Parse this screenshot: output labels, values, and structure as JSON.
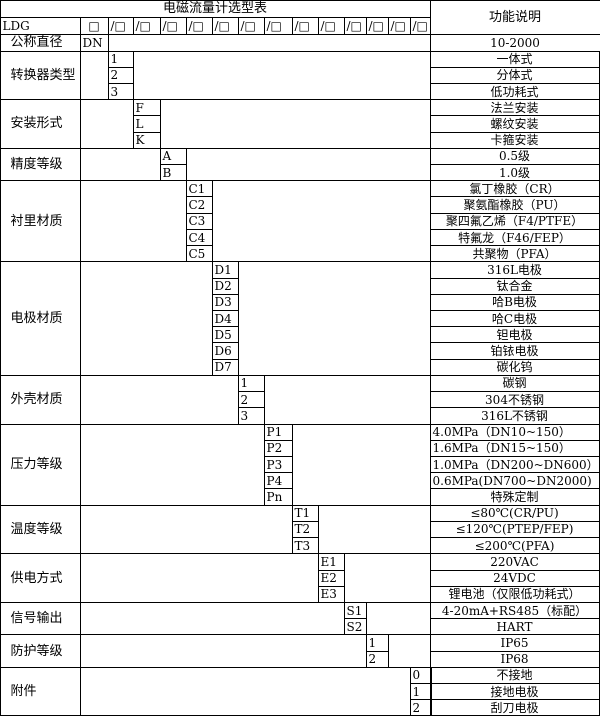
{
  "header": {
    "title": "电磁流量计选型表",
    "function_header": "功能说明",
    "model_prefix": "LDG",
    "first_box": "□",
    "boxes": [
      "/□",
      "/□",
      "/□",
      "/□",
      "/□",
      "/□",
      "/□",
      "/□",
      "/□",
      "/□",
      "/□",
      "/□",
      "/□"
    ]
  },
  "diameter": {
    "label": "公称直径",
    "code": "DN",
    "desc": "10-2000"
  },
  "groups": [
    {
      "label": "转换器类型",
      "col": 0,
      "codes": [
        "1",
        "2",
        "3"
      ],
      "descs": [
        "一体式",
        "分体式",
        "低功耗式"
      ]
    },
    {
      "label": "安装形式",
      "col": 1,
      "codes": [
        "F",
        "L",
        "K"
      ],
      "descs": [
        "法兰安装",
        "螺纹安装",
        "卡箍安装"
      ]
    },
    {
      "label": "精度等级",
      "col": 2,
      "codes": [
        "A",
        "B"
      ],
      "descs": [
        "0.5级",
        "1.0级"
      ]
    },
    {
      "label": "衬里材质",
      "col": 3,
      "codes": [
        "C1",
        "C2",
        "C3",
        "C4",
        "C5"
      ],
      "descs": [
        "氯丁橡胶（CR）",
        "聚氨酯橡胶（PU）",
        "聚四氟乙烯（F4/PTFE）",
        "特氟龙（F46/FEP）",
        "共聚物（PFA）"
      ]
    },
    {
      "label": "电极材质",
      "col": 4,
      "codes": [
        "D1",
        "D2",
        "D3",
        "D4",
        "D5",
        "D6",
        "D7"
      ],
      "descs": [
        "316L电极",
        "钛合金",
        "哈B电极",
        "哈C电极",
        "钽电极",
        "铂铱电极",
        "碳化钨"
      ]
    },
    {
      "label": "外壳材质",
      "col": 5,
      "codes": [
        "1",
        "2",
        "3"
      ],
      "descs": [
        "碳钢",
        "304不锈钢",
        "316L不锈钢"
      ]
    },
    {
      "label": "压力等级",
      "col": 6,
      "codes": [
        "P1",
        "P2",
        "P3",
        "P4",
        "Pn"
      ],
      "descs": [
        "4.0MPa（DN10~150）",
        "1.6MPa（DN15~150）",
        "1.0MPa（DN200~DN600）",
        "0.6MPa(DN700~DN2000)",
        "特殊定制"
      ],
      "desc_align_left": [
        true,
        true,
        true,
        true,
        false
      ]
    },
    {
      "label": "温度等级",
      "col": 7,
      "codes": [
        "T1",
        "T2",
        "T3"
      ],
      "descs": [
        "≤80℃(CR/PU)",
        "≤120℃(PTEP/FEP)",
        "≤200℃(PFA)"
      ]
    },
    {
      "label": "供电方式",
      "col": 8,
      "codes": [
        "E1",
        "E2",
        "E3"
      ],
      "descs": [
        "220VAC",
        "24VDC",
        "锂电池（仅限低功耗式）"
      ]
    },
    {
      "label": "信号输出",
      "col": 9,
      "codes": [
        "S1",
        "S2"
      ],
      "descs": [
        "4-20mA+RS485（标配）",
        "HART"
      ]
    },
    {
      "label": "防护等级",
      "col": 10,
      "codes": [
        "1",
        "2"
      ],
      "descs": [
        "IP65",
        "IP68"
      ]
    },
    {
      "label": "附件",
      "col": 12,
      "codes": [
        "0",
        "1",
        "2"
      ],
      "descs": [
        "不接地",
        "接地电极",
        "刮刀电极"
      ]
    }
  ]
}
